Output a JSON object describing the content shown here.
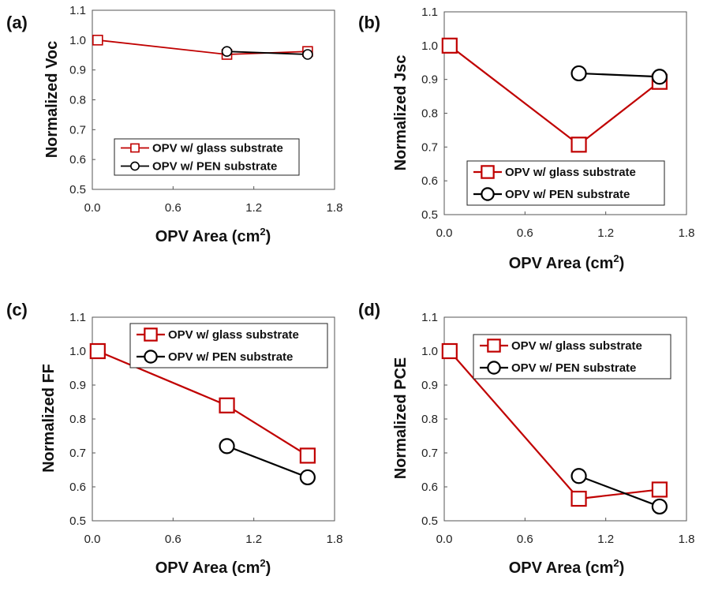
{
  "figure": {
    "legend": {
      "glass": "OPV w/ glass substrate",
      "pen": "OPV w/ PEN substrate"
    },
    "xlabel_main": "OPV Area (cm",
    "xlabel_sup": "2",
    "xlabel_close": ")",
    "colors": {
      "glass": "#c00000",
      "pen": "#000000"
    }
  },
  "chart_data": [
    {
      "type": "line",
      "panel_label": "(a)",
      "ylabel": "Normalized Voc",
      "xlim": [
        0.0,
        1.8
      ],
      "ylim": [
        0.5,
        1.1
      ],
      "xticks": [
        "0.0",
        "0.6",
        "1.2",
        "1.8"
      ],
      "yticks": [
        "0.5",
        "0.6",
        "0.7",
        "0.8",
        "0.9",
        "1.0",
        "1.1"
      ],
      "marker_size": "small",
      "legend_position": "lower-right",
      "series": [
        {
          "name": "OPV w/ glass substrate",
          "x": [
            0.04,
            1.0,
            1.6
          ],
          "y": [
            1.0,
            0.952,
            0.962
          ]
        },
        {
          "name": "OPV w/ PEN substrate",
          "x": [
            1.0,
            1.6
          ],
          "y": [
            0.962,
            0.952
          ]
        }
      ]
    },
    {
      "type": "line",
      "panel_label": "(b)",
      "ylabel": "Normalized Jsc",
      "xlim": [
        0.0,
        1.8
      ],
      "ylim": [
        0.5,
        1.1
      ],
      "xticks": [
        "0.0",
        "0.6",
        "1.2",
        "1.8"
      ],
      "yticks": [
        "0.5",
        "0.6",
        "0.7",
        "0.8",
        "0.9",
        "1.0",
        "1.1"
      ],
      "marker_size": "large",
      "legend_position": "lower-right",
      "series": [
        {
          "name": "OPV w/ glass substrate",
          "x": [
            0.04,
            1.0,
            1.6
          ],
          "y": [
            1.0,
            0.707,
            0.893
          ]
        },
        {
          "name": "OPV w/ PEN substrate",
          "x": [
            1.0,
            1.6
          ],
          "y": [
            0.918,
            0.908
          ]
        }
      ]
    },
    {
      "type": "line",
      "panel_label": "(c)",
      "ylabel": "Normalized FF",
      "xlim": [
        0.0,
        1.8
      ],
      "ylim": [
        0.5,
        1.1
      ],
      "xticks": [
        "0.0",
        "0.6",
        "1.2",
        "1.8"
      ],
      "yticks": [
        "0.5",
        "0.6",
        "0.7",
        "0.8",
        "0.9",
        "1.0",
        "1.1"
      ],
      "marker_size": "large",
      "legend_position": "top-right",
      "series": [
        {
          "name": "OPV w/ glass substrate",
          "x": [
            0.04,
            1.0,
            1.6
          ],
          "y": [
            1.0,
            0.84,
            0.692
          ]
        },
        {
          "name": "OPV w/ PEN substrate",
          "x": [
            1.0,
            1.6
          ],
          "y": [
            0.72,
            0.628
          ]
        }
      ]
    },
    {
      "type": "line",
      "panel_label": "(d)",
      "ylabel": "Normalized PCE",
      "xlim": [
        0.0,
        1.8
      ],
      "ylim": [
        0.5,
        1.1
      ],
      "xticks": [
        "0.0",
        "0.6",
        "1.2",
        "1.8"
      ],
      "yticks": [
        "0.5",
        "0.6",
        "0.7",
        "0.8",
        "0.9",
        "1.0",
        "1.1"
      ],
      "marker_size": "large",
      "legend_position": "top-right",
      "series": [
        {
          "name": "OPV w/ glass substrate",
          "x": [
            0.04,
            1.0,
            1.6
          ],
          "y": [
            1.0,
            0.565,
            0.592
          ]
        },
        {
          "name": "OPV w/ PEN substrate",
          "x": [
            1.0,
            1.6
          ],
          "y": [
            0.632,
            0.542
          ]
        }
      ]
    }
  ]
}
